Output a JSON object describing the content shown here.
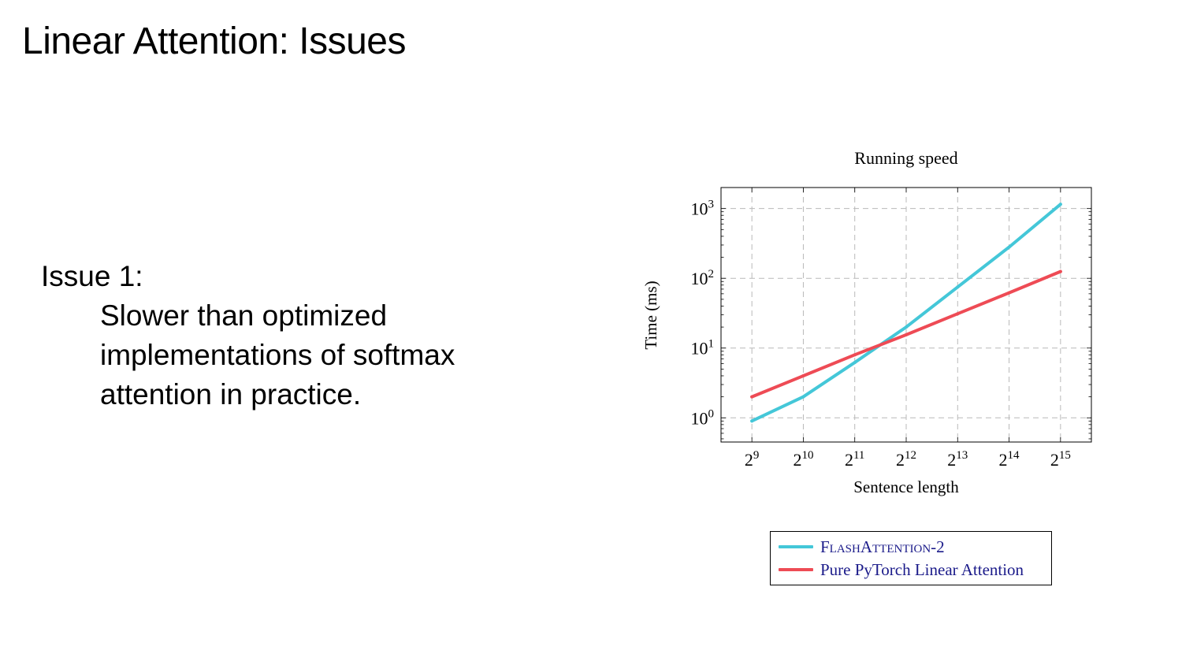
{
  "slide": {
    "title": "Linear Attention: Issues",
    "issue_heading": "Issue 1:",
    "issue_lines": [
      "Slower than optimized",
      "implementations of softmax",
      "attention in practice."
    ]
  },
  "colors": {
    "flash": "#44c7d8",
    "linear": "#ee4b55",
    "legend_text": "#1b1b8a"
  },
  "chart_data": {
    "type": "line",
    "title": "Running speed",
    "xlabel": "Sentence length",
    "ylabel": "Time (ms)",
    "x_scale": "log2",
    "y_scale": "log10",
    "grid": true,
    "grid_style": "dashed",
    "x": [
      512,
      1024,
      2048,
      4096,
      8192,
      16384,
      32768
    ],
    "x_tick_labels": [
      {
        "base": "2",
        "exp": "9"
      },
      {
        "base": "2",
        "exp": "10"
      },
      {
        "base": "2",
        "exp": "11"
      },
      {
        "base": "2",
        "exp": "12"
      },
      {
        "base": "2",
        "exp": "13"
      },
      {
        "base": "2",
        "exp": "14"
      },
      {
        "base": "2",
        "exp": "15"
      }
    ],
    "y_tick_labels": [
      {
        "base": "10",
        "exp": "0",
        "value": 1
      },
      {
        "base": "10",
        "exp": "1",
        "value": 10
      },
      {
        "base": "10",
        "exp": "2",
        "value": 100
      },
      {
        "base": "10",
        "exp": "3",
        "value": 1000
      }
    ],
    "ylim": [
      0.45,
      2000
    ],
    "legend_position": "bottom (below chart)",
    "series": [
      {
        "name": "FlashAttention-2",
        "color": "#44c7d8",
        "values": [
          0.9,
          2.0,
          6.2,
          20,
          75,
          280,
          1150
        ]
      },
      {
        "name": "Pure PyTorch Linear Attention",
        "color": "#ee4b55",
        "values": [
          2.0,
          4.0,
          8.0,
          15.5,
          31,
          62,
          125
        ]
      }
    ]
  }
}
